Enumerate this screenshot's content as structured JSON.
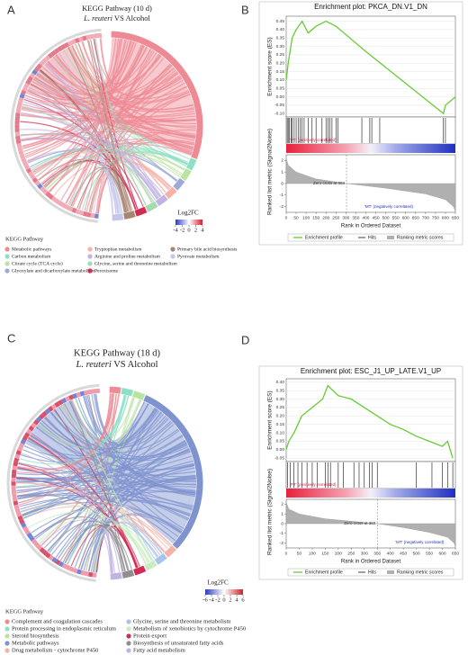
{
  "chart_data": [
    {
      "type": "chord",
      "panel": "A",
      "title": "KEGG Pathway (10 d)",
      "subtitle_italic": "L. reuteri",
      "subtitle_rest": " VS Alcohol",
      "legend_title": "KEGG Pathway",
      "pathways": [
        {
          "name": "Metabolic pathways",
          "color": "#ee8a94"
        },
        {
          "name": "Carbon metabolism",
          "color": "#8fdfc6"
        },
        {
          "name": "Citrate cycle (TCA cycle)",
          "color": "#b9e3a2"
        },
        {
          "name": "Glyoxylate and dicarboxylate metabolism",
          "color": "#9ea9d9"
        },
        {
          "name": "Tryptophan metabolism",
          "color": "#f4b2aa"
        },
        {
          "name": "Arginine and proline metabolism",
          "color": "#c2b3e2"
        },
        {
          "name": "Glycine, serine and threonine metabolism",
          "color": "#a6d9ab"
        },
        {
          "name": "Peroxisome",
          "color": "#d22a52"
        },
        {
          "name": "Primary bile acid biosynthesis",
          "color": "#a68572"
        },
        {
          "name": "Pyruvate metabolism",
          "color": "#c4c6ea"
        }
      ],
      "colorbar_title": "Log2FC",
      "colorbar_ticks": [
        -4,
        -2,
        0,
        2,
        4
      ]
    },
    {
      "type": "gsea",
      "panel": "B",
      "title": "Enrichment plot: PKCA_DN.V1_DN",
      "ylabel": "Enrichment score (ES)",
      "metric_ylabel": "Ranked list metric (Signal2Noise)",
      "xlabel": "Rank in Ordered Dataset",
      "xlim": [
        0,
        850
      ],
      "xticks": [
        0,
        50,
        100,
        150,
        200,
        250,
        300,
        350,
        400,
        450,
        500,
        550,
        600,
        650,
        700,
        750,
        800,
        850
      ],
      "ylim": [
        -0.12,
        0.48
      ],
      "yticks": [
        {
          "value": -0.1,
          "label": "-0.10"
        },
        -0.05,
        {
          "value": 0,
          "label": "0.00"
        },
        0.05,
        {
          "value": 0.1,
          "label": "0.10"
        },
        0.15,
        {
          "value": 0.2,
          "label": "0.20"
        },
        0.25,
        {
          "value": 0.3,
          "label": "0.30"
        },
        0.35,
        {
          "value": 0.4,
          "label": "0.40"
        },
        0.45
      ],
      "es_x": [
        0,
        10,
        30,
        50,
        80,
        110,
        150,
        200,
        250,
        400,
        600,
        790,
        800,
        850
      ],
      "es_values": [
        0.1,
        0.2,
        0.35,
        0.4,
        0.45,
        0.38,
        0.42,
        0.45,
        0.42,
        0.27,
        0.08,
        -0.1,
        -0.05,
        0
      ],
      "hits": [
        5,
        10,
        15,
        25,
        30,
        40,
        50,
        60,
        70,
        80,
        90,
        110,
        130,
        150,
        180,
        200,
        210,
        220,
        230,
        250,
        260,
        380,
        420,
        430,
        470,
        790,
        800
      ],
      "metric_ylim": [
        -2.5,
        2.5
      ],
      "metric_yticks": [
        -2,
        -1,
        0,
        1,
        2
      ],
      "metric_x": [
        0,
        10,
        50,
        150,
        303,
        500,
        700,
        800,
        840,
        850
      ],
      "metric_values": [
        2.2,
        1.6,
        1.0,
        0.4,
        0,
        -0.4,
        -0.9,
        -1.4,
        -2.0,
        -2.4
      ],
      "zero_cross": 303,
      "annotation_pos": "'PT' (positively correlated)",
      "annotation_zero": "Zero cross at 303",
      "annotation_neg": "'MT' (negatively correlated)",
      "legend": [
        "Enrichment profile",
        "Hits",
        "Ranking metric scores"
      ],
      "color": "#66cc33"
    },
    {
      "type": "chord",
      "panel": "C",
      "title": "KEGG Pathway (18 d)",
      "subtitle_italic": "L. reuteri",
      "subtitle_rest": " VS Alcohol",
      "legend_title": "KEGG Pathway",
      "pathways": [
        {
          "name": "Complement and coagulation cascades",
          "color": "#ee8a94"
        },
        {
          "name": "Protein processing in endoplasmic reticulum",
          "color": "#8fdfc6"
        },
        {
          "name": "Steroid biosynthesis",
          "color": "#b9e3a2"
        },
        {
          "name": "Metabolic pathways",
          "color": "#7f93cf"
        },
        {
          "name": "Drug metabolism - cytochrome P450",
          "color": "#f4b2aa"
        },
        {
          "name": "Glycine, serine and threonine metabolism",
          "color": "#a9c3ea"
        },
        {
          "name": "Metabolism of xenobiotics by cytochrome P450",
          "color": "#c9ecc0"
        },
        {
          "name": "Protein export",
          "color": "#d22a52"
        },
        {
          "name": "Biosynthesis of unsaturated fatty acids",
          "color": "#8f8f8f"
        },
        {
          "name": "Fatty acid metabolism",
          "color": "#c2b3e2"
        }
      ],
      "colorbar_title": "Log2FC",
      "colorbar_ticks": [
        -6,
        -4,
        -2,
        0,
        2,
        4,
        6
      ]
    },
    {
      "type": "gsea",
      "panel": "D",
      "title": "Enrichment plot: ESC_J1_UP_LATE.V1_UP",
      "ylabel": "Enrichment score (ES)",
      "metric_ylabel": "Ranked list metric (Signal2Noise)",
      "xlabel": "Rank in Ordered Dataset",
      "xlim": [
        0,
        650
      ],
      "xticks": [
        0,
        50,
        100,
        150,
        200,
        250,
        300,
        350,
        400,
        450,
        500,
        550,
        600,
        650
      ],
      "ylim": [
        -0.07,
        0.42
      ],
      "yticks": [
        -0.05,
        {
          "value": 0,
          "label": "0.00"
        },
        0.05,
        {
          "value": 0.1,
          "label": "0.10"
        },
        0.15,
        {
          "value": 0.2,
          "label": "0.20"
        },
        0.25,
        {
          "value": 0.3,
          "label": "0.30"
        },
        0.35,
        {
          "value": 0.4,
          "label": "0.40"
        }
      ],
      "es_x": [
        0,
        10,
        30,
        60,
        100,
        140,
        160,
        200,
        250,
        300,
        350,
        400,
        450,
        500,
        550,
        600,
        620,
        640
      ],
      "es_values": [
        0,
        0.05,
        0.1,
        0.2,
        0.25,
        0.3,
        0.38,
        0.32,
        0.3,
        0.25,
        0.2,
        0.15,
        0.12,
        0.08,
        0.05,
        0.02,
        0.05,
        -0.05
      ],
      "hits": [
        5,
        15,
        30,
        45,
        60,
        80,
        100,
        120,
        150,
        160,
        170,
        200,
        220,
        260,
        280,
        300,
        320,
        330,
        350,
        500,
        560,
        600,
        620,
        640
      ],
      "metric_ylim": [
        -2.5,
        2.5
      ],
      "metric_yticks": [
        -2,
        -1,
        0,
        1,
        2
      ],
      "metric_x": [
        0,
        10,
        50,
        150,
        350,
        450,
        550,
        620,
        645,
        650
      ],
      "metric_values": [
        2.2,
        1.5,
        1.0,
        0.5,
        0,
        -0.4,
        -0.9,
        -1.4,
        -2.0,
        -2.4
      ],
      "zero_cross": 350,
      "annotation_pos": "'PT' (positively correlated)",
      "annotation_zero": "Zero cross at 350",
      "annotation_neg": "'MT' (negatively correlated)",
      "legend": [
        "Enrichment profile",
        "Hits",
        "Ranking metric scores"
      ],
      "color": "#66cc33"
    }
  ]
}
